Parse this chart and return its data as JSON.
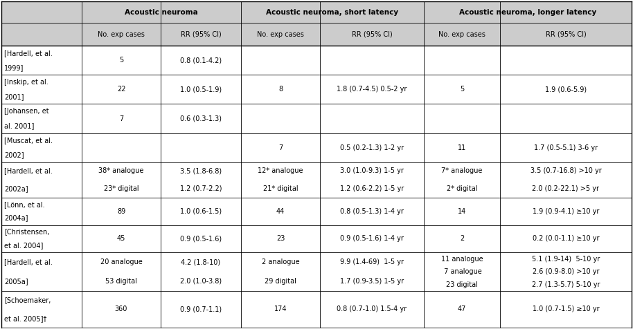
{
  "col_headers_row1": [
    "",
    "Acoustic neuroma",
    "Acoustic neuroma, short latency",
    "Acoustic neuroma, longer latency"
  ],
  "col_headers_row2": [
    "",
    "No. exp cases",
    "RR (95% CI)",
    "No. exp cases",
    "RR (95% CI)",
    "No. exp cases",
    "RR (95% CI)"
  ],
  "rows": [
    {
      "ref": "[Hardell, et al.\n1999]",
      "an_cases": "5",
      "an_rr": "0.8 (0.1-4.2)",
      "ans_cases": "",
      "ans_rr": "",
      "anl_cases": "",
      "anl_rr": ""
    },
    {
      "ref": "[Inskip, et al.\n2001]",
      "an_cases": "22",
      "an_rr": "1.0 (0.5-1.9)",
      "ans_cases": "8",
      "ans_rr": "1.8 (0.7-4.5) 0.5-2 yr",
      "anl_cases": "5",
      "anl_rr": "1.9 (0.6-5.9)"
    },
    {
      "ref": "[Johansen, et\nal. 2001]",
      "an_cases": "7",
      "an_rr": "0.6 (0.3-1.3)",
      "ans_cases": "",
      "ans_rr": "",
      "anl_cases": "",
      "anl_rr": ""
    },
    {
      "ref": "[Muscat, et al.\n2002]",
      "an_cases": "",
      "an_rr": "",
      "ans_cases": "7",
      "ans_rr": "0.5 (0.2-1.3) 1-2 yr",
      "anl_cases": "11",
      "anl_rr": "1.7 (0.5-5.1) 3-6 yr"
    },
    {
      "ref": "[Hardell, et al.\n2002a]",
      "an_cases": "38* analogue\n23* digital",
      "an_rr": "3.5 (1.8-6.8)\n1.2 (0.7-2.2)",
      "ans_cases": "12* analogue\n21* digital",
      "ans_rr": "3.0 (1.0-9.3) 1-5 yr\n1.2 (0.6-2.2) 1-5 yr",
      "anl_cases": "7* analogue\n2* digital",
      "anl_rr": "3.5 (0.7-16.8) >10 yr\n2.0 (0.2-22.1) >5 yr"
    },
    {
      "ref": "[Lönn, et al.\n2004a]",
      "an_cases": "89",
      "an_rr": "1.0 (0.6-1.5)",
      "ans_cases": "44",
      "ans_rr": "0.8 (0.5-1.3) 1-4 yr",
      "anl_cases": "14",
      "anl_rr": "1.9 (0.9-4.1) ≥10 yr"
    },
    {
      "ref": "[Christensen,\net al. 2004]",
      "an_cases": "45",
      "an_rr": "0.9 (0.5-1.6)",
      "ans_cases": "23",
      "ans_rr": "0.9 (0.5-1.6) 1-4 yr",
      "anl_cases": "2",
      "anl_rr": "0.2 (0.0-1.1) ≥10 yr"
    },
    {
      "ref": "[Hardell, et al.\n2005a]",
      "an_cases": "20 analogue\n53 digital",
      "an_rr": "4.2 (1.8-10)\n2.0 (1.0-3.8)",
      "ans_cases": "2 analogue\n29 digital",
      "ans_rr": "9.9 (1.4-69)  1-5 yr\n1.7 (0.9-3.5) 1-5 yr",
      "anl_cases": "11 analogue\n 7 analogue\n23 digital",
      "anl_rr": "5.1 (1.9-14)  5-10 yr\n2.6 (0.9-8.0) >10 yr\n2.7 (1.3-5.7) 5-10 yr"
    },
    {
      "ref": "[Schoemaker,\net al. 2005]†",
      "an_cases": "360",
      "an_rr": "0.9 (0.7-1.1)",
      "ans_cases": "174",
      "ans_rr": "0.8 (0.7-1.0) 1.5-4 yr",
      "anl_cases": "47",
      "anl_rr": "1.0 (0.7-1.5) ≥10 yr"
    }
  ],
  "background_color": "#ffffff",
  "header_bg": "#cccccc",
  "border_color": "#000000",
  "font_size": 7.0,
  "header_font_size": 7.5,
  "fig_width": 9.14,
  "fig_height": 4.76,
  "dpi": 100
}
